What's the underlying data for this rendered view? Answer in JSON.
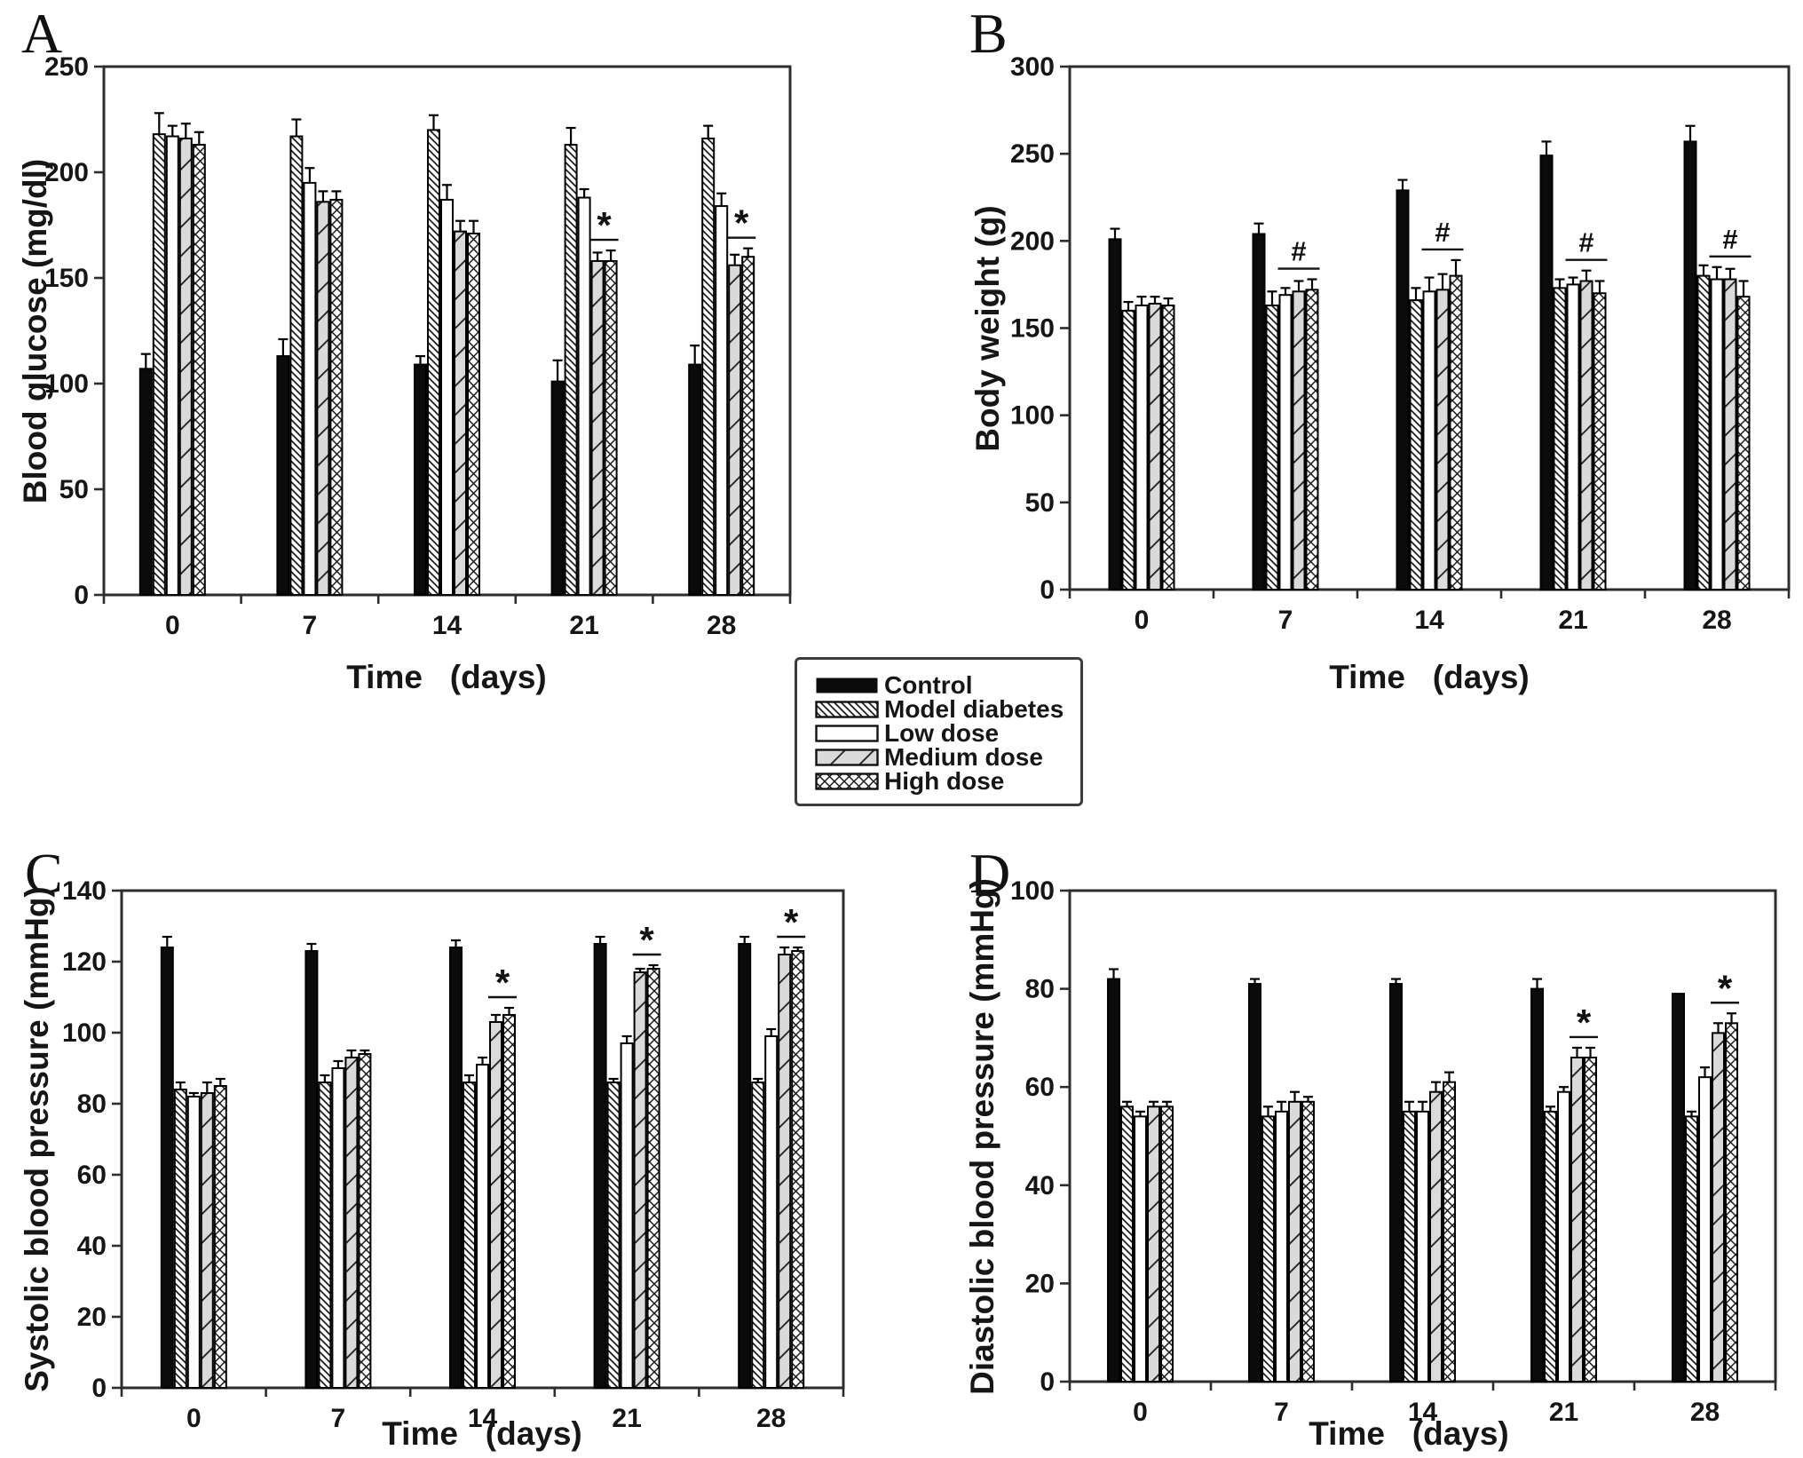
{
  "legend": {
    "items": [
      {
        "label": "Control",
        "pattern": "solid"
      },
      {
        "label": "Model diabetes",
        "pattern": "hatch"
      },
      {
        "label": "Low dose",
        "pattern": "plain"
      },
      {
        "label": "Medium dose",
        "pattern": "diag"
      },
      {
        "label": "High dose",
        "pattern": "cross"
      }
    ]
  },
  "chart_data": [
    {
      "panel": "A",
      "type": "bar",
      "xlabel": "Time   (days)",
      "ylabel": "Blood glucose (mg/dl)",
      "categories": [
        "0",
        "7",
        "14",
        "21",
        "28"
      ],
      "ylim": [
        0,
        250
      ],
      "ytick_step": 50,
      "grid": false,
      "legend_position": "shared-external",
      "series": [
        {
          "name": "Control",
          "pattern": "solid",
          "values": [
            107,
            113,
            109,
            101,
            109
          ],
          "errors": [
            7,
            8,
            4,
            10,
            9
          ]
        },
        {
          "name": "Model diabetes",
          "pattern": "hatch",
          "values": [
            218,
            217,
            220,
            213,
            216
          ],
          "errors": [
            10,
            8,
            7,
            8,
            6
          ]
        },
        {
          "name": "Low dose",
          "pattern": "plain",
          "values": [
            217,
            195,
            187,
            188,
            184
          ],
          "errors": [
            5,
            7,
            7,
            4,
            6
          ]
        },
        {
          "name": "Medium dose",
          "pattern": "diag",
          "values": [
            216,
            186,
            172,
            158,
            156
          ],
          "errors": [
            7,
            5,
            5,
            4,
            5
          ]
        },
        {
          "name": "High dose",
          "pattern": "cross",
          "values": [
            213,
            187,
            171,
            158,
            160
          ],
          "errors": [
            6,
            4,
            6,
            5,
            4
          ]
        }
      ],
      "significance": [
        {
          "category": "21",
          "symbol": "*",
          "span": [
            "Medium dose",
            "High dose"
          ]
        },
        {
          "category": "28",
          "symbol": "*",
          "span": [
            "Medium dose",
            "High dose"
          ]
        }
      ]
    },
    {
      "panel": "B",
      "type": "bar",
      "xlabel": "Time   (days)",
      "ylabel": "Body weight (g)",
      "categories": [
        "0",
        "7",
        "14",
        "21",
        "28"
      ],
      "ylim": [
        0,
        300
      ],
      "ytick_step": 50,
      "grid": false,
      "legend_position": "shared-external",
      "series": [
        {
          "name": "Control",
          "pattern": "solid",
          "values": [
            201,
            204,
            229,
            249,
            257
          ],
          "errors": [
            6,
            6,
            6,
            8,
            9
          ]
        },
        {
          "name": "Model diabetes",
          "pattern": "hatch",
          "values": [
            160,
            163,
            166,
            173,
            180
          ],
          "errors": [
            5,
            8,
            7,
            5,
            6
          ]
        },
        {
          "name": "Low dose",
          "pattern": "plain",
          "values": [
            163,
            169,
            171,
            175,
            178
          ],
          "errors": [
            5,
            4,
            8,
            4,
            7
          ]
        },
        {
          "name": "Medium dose",
          "pattern": "diag",
          "values": [
            164,
            171,
            172,
            177,
            178
          ],
          "errors": [
            4,
            6,
            9,
            6,
            6
          ]
        },
        {
          "name": "High dose",
          "pattern": "cross",
          "values": [
            163,
            172,
            180,
            170,
            168
          ],
          "errors": [
            4,
            6,
            9,
            7,
            9
          ]
        }
      ],
      "significance": [
        {
          "category": "7",
          "symbol": "#",
          "span": [
            "Low dose",
            "High dose"
          ]
        },
        {
          "category": "14",
          "symbol": "#",
          "span": [
            "Low dose",
            "High dose"
          ]
        },
        {
          "category": "21",
          "symbol": "#",
          "span": [
            "Low dose",
            "High dose"
          ]
        },
        {
          "category": "28",
          "symbol": "#",
          "span": [
            "Low dose",
            "High dose"
          ]
        }
      ]
    },
    {
      "panel": "C",
      "type": "bar",
      "xlabel": "Time   (days)",
      "ylabel": "Systolic blood pressure (mmHg)",
      "categories": [
        "0",
        "7",
        "14",
        "21",
        "28"
      ],
      "ylim": [
        0,
        140
      ],
      "ytick_step": 20,
      "grid": false,
      "legend_position": "shared-external",
      "series": [
        {
          "name": "Control",
          "pattern": "solid",
          "values": [
            124,
            123,
            124,
            125,
            125
          ],
          "errors": [
            3,
            2,
            2,
            2,
            2
          ]
        },
        {
          "name": "Model diabetes",
          "pattern": "hatch",
          "values": [
            84,
            86,
            86,
            86,
            86
          ],
          "errors": [
            2,
            2,
            2,
            1,
            1
          ]
        },
        {
          "name": "Low dose",
          "pattern": "plain",
          "values": [
            82,
            90,
            91,
            97,
            99
          ],
          "errors": [
            1,
            2,
            2,
            2,
            2
          ]
        },
        {
          "name": "Medium dose",
          "pattern": "diag",
          "values": [
            83,
            93,
            103,
            117,
            122
          ],
          "errors": [
            3,
            2,
            2,
            1,
            2
          ]
        },
        {
          "name": "High dose",
          "pattern": "cross",
          "values": [
            85,
            94,
            105,
            118,
            123
          ],
          "errors": [
            2,
            1,
            2,
            1,
            1
          ]
        }
      ],
      "significance": [
        {
          "category": "14",
          "symbol": "*",
          "span": [
            "Medium dose",
            "High dose"
          ]
        },
        {
          "category": "21",
          "symbol": "*",
          "span": [
            "Medium dose",
            "High dose"
          ]
        },
        {
          "category": "28",
          "symbol": "*",
          "span": [
            "Medium dose",
            "High dose"
          ]
        }
      ]
    },
    {
      "panel": "D",
      "type": "bar",
      "xlabel": "Time   (days)",
      "ylabel": "Diastolic blood pressure (mmHg)",
      "categories": [
        "0",
        "7",
        "14",
        "21",
        "28"
      ],
      "ylim": [
        0,
        100
      ],
      "ytick_step": 20,
      "grid": false,
      "legend_position": "shared-external",
      "series": [
        {
          "name": "Control",
          "pattern": "solid",
          "values": [
            82,
            81,
            81,
            80,
            79
          ],
          "errors": [
            2,
            1,
            1,
            2,
            0
          ]
        },
        {
          "name": "Model diabetes",
          "pattern": "hatch",
          "values": [
            56,
            54,
            55,
            55,
            54
          ],
          "errors": [
            1,
            2,
            2,
            1,
            1
          ]
        },
        {
          "name": "Low dose",
          "pattern": "plain",
          "values": [
            54,
            55,
            55,
            59,
            62
          ],
          "errors": [
            1,
            2,
            2,
            1,
            2
          ]
        },
        {
          "name": "Medium dose",
          "pattern": "diag",
          "values": [
            56,
            57,
            59,
            66,
            71
          ],
          "errors": [
            1,
            2,
            2,
            2,
            2
          ]
        },
        {
          "name": "High dose",
          "pattern": "cross",
          "values": [
            56,
            57,
            61,
            66,
            73
          ],
          "errors": [
            1,
            1,
            2,
            2,
            2
          ]
        }
      ],
      "significance": [
        {
          "category": "21",
          "symbol": "*",
          "span": [
            "Medium dose",
            "High dose"
          ]
        },
        {
          "category": "28",
          "symbol": "*",
          "span": [
            "Medium dose",
            "High dose"
          ]
        }
      ]
    }
  ],
  "colors": {
    "bar_fill_solid": "#0b0b0b",
    "bar_stroke": "#000000",
    "axis": "#2d2d2d",
    "text": "#161616",
    "medium_dose_fill": "#dadada",
    "background": "#ffffff"
  }
}
